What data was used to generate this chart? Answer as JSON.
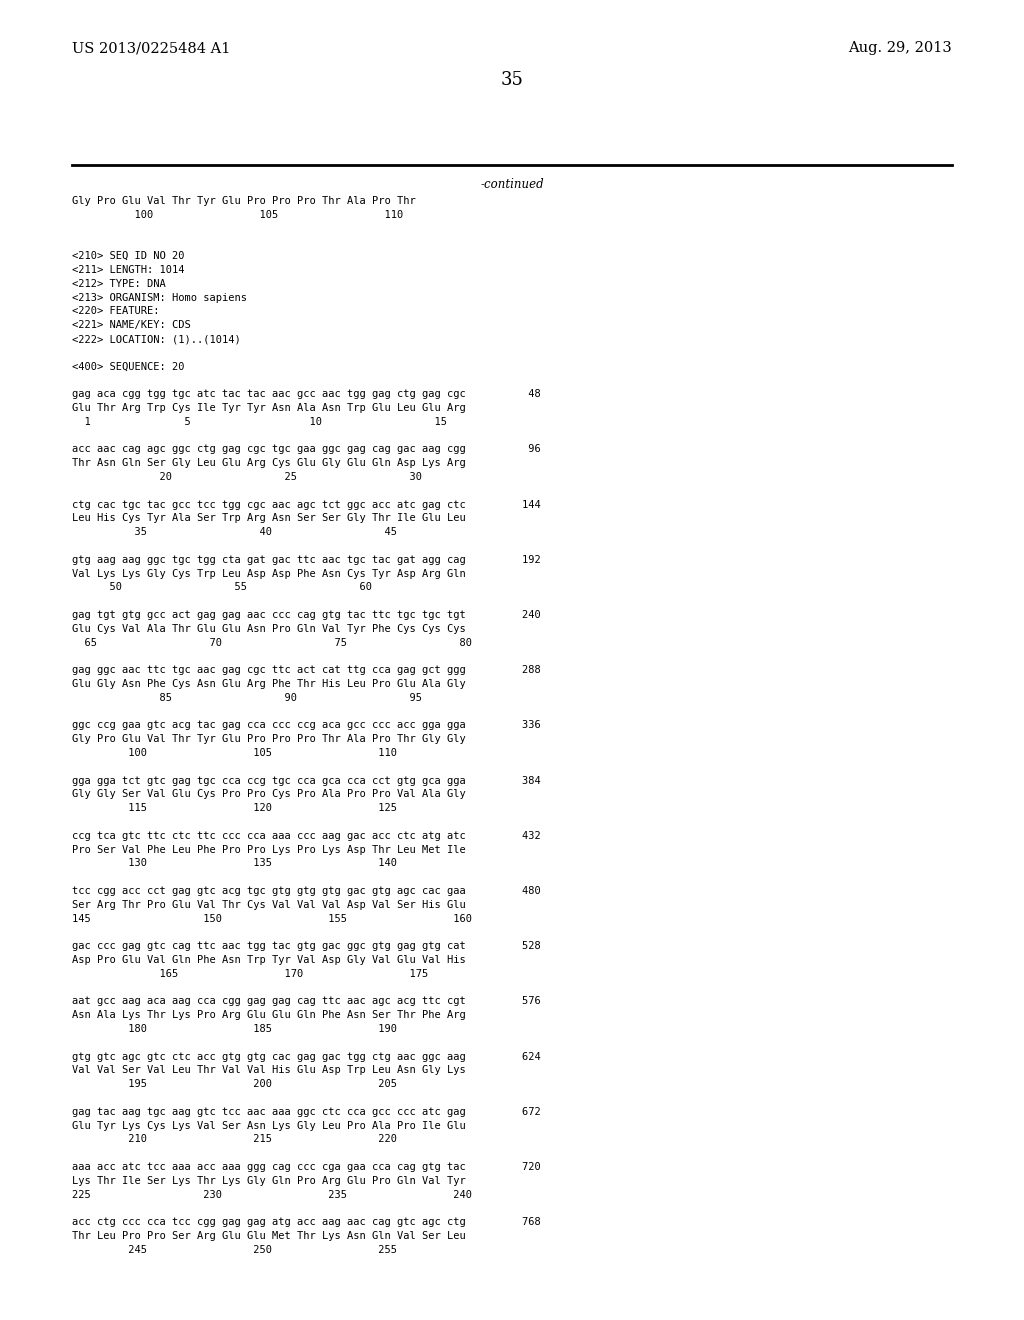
{
  "background_color": "#ffffff",
  "header_left": "US 2013/0225484 A1",
  "header_right": "Aug. 29, 2013",
  "page_number": "35",
  "continued_label": "-continued",
  "lines": [
    "Gly Pro Glu Val Thr Tyr Glu Pro Pro Pro Thr Ala Pro Thr",
    "          100                 105                 110",
    "",
    "",
    "<210> SEQ ID NO 20",
    "<211> LENGTH: 1014",
    "<212> TYPE: DNA",
    "<213> ORGANISM: Homo sapiens",
    "<220> FEATURE:",
    "<221> NAME/KEY: CDS",
    "<222> LOCATION: (1)..(1014)",
    "",
    "<400> SEQUENCE: 20",
    "",
    "gag aca cgg tgg tgc atc tac tac aac gcc aac tgg gag ctg gag cgc          48",
    "Glu Thr Arg Trp Cys Ile Tyr Tyr Asn Ala Asn Trp Glu Leu Glu Arg",
    "  1               5                   10                  15",
    "",
    "acc aac cag agc ggc ctg gag cgc tgc gaa ggc gag cag gac aag cgg          96",
    "Thr Asn Gln Ser Gly Leu Glu Arg Cys Glu Gly Glu Gln Asp Lys Arg",
    "              20                  25                  30",
    "",
    "ctg cac tgc tac gcc tcc tgg cgc aac agc tct ggc acc atc gag ctc         144",
    "Leu His Cys Tyr Ala Ser Trp Arg Asn Ser Ser Gly Thr Ile Glu Leu",
    "          35                  40                  45",
    "",
    "gtg aag aag ggc tgc tgg cta gat gac ttc aac tgc tac gat agg cag         192",
    "Val Lys Lys Gly Cys Trp Leu Asp Asp Phe Asn Cys Tyr Asp Arg Gln",
    "      50                  55                  60",
    "",
    "gag tgt gtg gcc act gag gag aac ccc cag gtg tac ttc tgc tgc tgt         240",
    "Glu Cys Val Ala Thr Glu Glu Asn Pro Gln Val Tyr Phe Cys Cys Cys",
    "  65                  70                  75                  80",
    "",
    "gag ggc aac ttc tgc aac gag cgc ttc act cat ttg cca gag gct ggg         288",
    "Glu Gly Asn Phe Cys Asn Glu Arg Phe Thr His Leu Pro Glu Ala Gly",
    "              85                  90                  95",
    "",
    "ggc ccg gaa gtc acg tac gag cca ccc ccg aca gcc ccc acc gga gga         336",
    "Gly Pro Glu Val Thr Tyr Glu Pro Pro Pro Thr Ala Pro Thr Gly Gly",
    "         100                 105                 110",
    "",
    "gga gga tct gtc gag tgc cca ccg tgc cca gca cca cct gtg gca gga         384",
    "Gly Gly Ser Val Glu Cys Pro Pro Cys Pro Ala Pro Pro Val Ala Gly",
    "         115                 120                 125",
    "",
    "ccg tca gtc ttc ctc ttc ccc cca aaa ccc aag gac acc ctc atg atc         432",
    "Pro Ser Val Phe Leu Phe Pro Pro Lys Pro Lys Asp Thr Leu Met Ile",
    "         130                 135                 140",
    "",
    "tcc cgg acc cct gag gtc acg tgc gtg gtg gtg gac gtg agc cac gaa         480",
    "Ser Arg Thr Pro Glu Val Thr Cys Val Val Val Asp Val Ser His Glu",
    "145                  150                 155                 160",
    "",
    "gac ccc gag gtc cag ttc aac tgg tac gtg gac ggc gtg gag gtg cat         528",
    "Asp Pro Glu Val Gln Phe Asn Trp Tyr Val Asp Gly Val Glu Val His",
    "              165                 170                 175",
    "",
    "aat gcc aag aca aag cca cgg gag gag cag ttc aac agc acg ttc cgt         576",
    "Asn Ala Lys Thr Lys Pro Arg Glu Glu Gln Phe Asn Ser Thr Phe Arg",
    "         180                 185                 190",
    "",
    "gtg gtc agc gtc ctc acc gtg gtg cac gag gac tgg ctg aac ggc aag         624",
    "Val Val Ser Val Leu Thr Val Val His Glu Asp Trp Leu Asn Gly Lys",
    "         195                 200                 205",
    "",
    "gag tac aag tgc aag gtc tcc aac aaa ggc ctc cca gcc ccc atc gag         672",
    "Glu Tyr Lys Cys Lys Val Ser Asn Lys Gly Leu Pro Ala Pro Ile Glu",
    "         210                 215                 220",
    "",
    "aaa acc atc tcc aaa acc aaa ggg cag ccc cga gaa cca cag gtg tac         720",
    "Lys Thr Ile Ser Lys Thr Lys Gly Gln Pro Arg Glu Pro Gln Val Tyr",
    "225                  230                 235                 240",
    "",
    "acc ctg ccc cca tcc cgg gag gag atg acc aag aac cag gtc agc ctg         768",
    "Thr Leu Pro Pro Ser Arg Glu Glu Met Thr Lys Asn Gln Val Ser Leu",
    "         245                 250                 255"
  ]
}
